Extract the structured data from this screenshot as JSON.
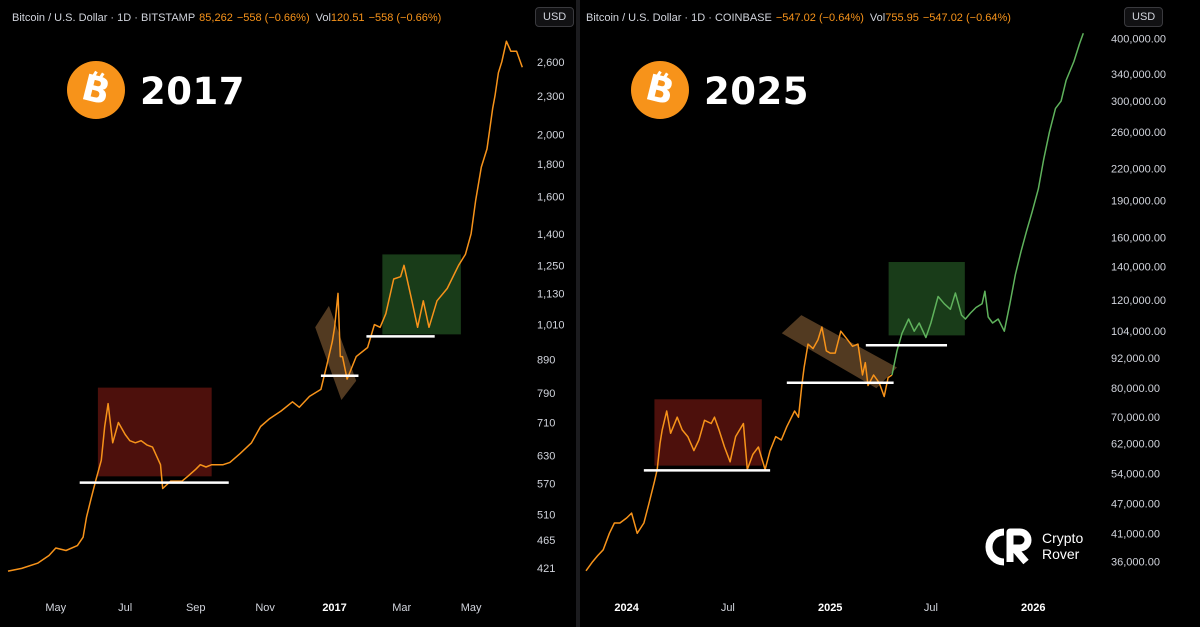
{
  "chart_data": [
    {
      "type": "line",
      "header": {
        "symbol": "Bitcoin / U.S. Dollar · 1D · BITSTAMP",
        "price": "85,262",
        "change": "−558 (−0.66%)",
        "vol_label": "Vol",
        "vol_value": "120.51",
        "vol_change": "−558 (−0.66%)"
      },
      "currency": "USD",
      "year_label": "2017",
      "scale": "log",
      "ylim": [
        400,
        3000
      ],
      "y_ticks": [
        "2,600",
        "2,300",
        "2,000",
        "1,800",
        "1,600",
        "1,400",
        "1,250",
        "1,130",
        "1,010",
        "890",
        "790",
        "710",
        "630",
        "570",
        "510",
        "465",
        "421"
      ],
      "x_ticks": [
        "May",
        "Jul",
        "Sep",
        "Nov",
        "2017",
        "Mar",
        "May"
      ],
      "x_ticks_bold": [
        false,
        false,
        false,
        false,
        true,
        false,
        false
      ],
      "x_dates": [
        "2016-05-01",
        "2016-07-01",
        "2016-09-01",
        "2016-11-01",
        "2017-01-01",
        "2017-03-01",
        "2017-05-01"
      ],
      "xlim": [
        "2016-03-20",
        "2017-06-20"
      ],
      "series": [
        {
          "color": "#f7931a",
          "x": [
            "2016-03-20",
            "2016-04-01",
            "2016-04-15",
            "2016-04-25",
            "2016-05-01",
            "2016-05-10",
            "2016-05-20",
            "2016-05-25",
            "2016-05-28",
            "2016-06-01",
            "2016-06-05",
            "2016-06-10",
            "2016-06-13",
            "2016-06-16",
            "2016-06-20",
            "2016-06-25",
            "2016-07-01",
            "2016-07-05",
            "2016-07-10",
            "2016-07-15",
            "2016-07-20",
            "2016-07-25",
            "2016-08-01",
            "2016-08-03",
            "2016-08-10",
            "2016-08-15",
            "2016-08-20",
            "2016-08-25",
            "2016-09-01",
            "2016-09-05",
            "2016-09-10",
            "2016-09-15",
            "2016-09-20",
            "2016-09-25",
            "2016-10-01",
            "2016-10-10",
            "2016-10-20",
            "2016-10-28",
            "2016-11-05",
            "2016-11-15",
            "2016-11-25",
            "2016-12-01",
            "2016-12-10",
            "2016-12-20",
            "2016-12-25",
            "2016-12-30",
            "2017-01-01",
            "2017-01-04",
            "2017-01-06",
            "2017-01-08",
            "2017-01-12",
            "2017-01-20",
            "2017-01-30",
            "2017-02-05",
            "2017-02-10",
            "2017-02-15",
            "2017-02-22",
            "2017-02-28",
            "2017-03-03",
            "2017-03-10",
            "2017-03-15",
            "2017-03-20",
            "2017-03-25",
            "2017-04-01",
            "2017-04-10",
            "2017-04-20",
            "2017-04-26",
            "2017-05-01",
            "2017-05-05",
            "2017-05-10",
            "2017-05-15",
            "2017-05-20",
            "2017-05-22",
            "2017-05-25",
            "2017-05-28",
            "2017-06-01",
            "2017-06-05",
            "2017-06-10",
            "2017-06-15"
          ],
          "values": [
            416,
            420,
            428,
            440,
            452,
            448,
            456,
            470,
            505,
            540,
            575,
            620,
            700,
            760,
            660,
            710,
            680,
            665,
            660,
            665,
            655,
            650,
            610,
            560,
            575,
            575,
            575,
            585,
            600,
            610,
            605,
            610,
            610,
            610,
            615,
            635,
            660,
            700,
            720,
            740,
            765,
            750,
            780,
            800,
            870,
            950,
            1000,
            1130,
            900,
            900,
            830,
            900,
            930,
            1010,
            1000,
            1050,
            1190,
            1200,
            1250,
            1100,
            1000,
            1100,
            1000,
            1100,
            1150,
            1250,
            1300,
            1400,
            1580,
            1780,
            1900,
            2200,
            2300,
            2500,
            2600,
            2800,
            2700,
            2700,
            2550
          ]
        }
      ],
      "boxes": [
        {
          "kind": "red",
          "x0": "2016-06-07",
          "x1": "2016-09-15",
          "y0": 585,
          "y1": 805
        },
        {
          "kind": "green",
          "x0": "2017-02-12",
          "x1": "2017-04-22",
          "y0": 975,
          "y1": 1300
        },
        {
          "kind": "tan",
          "corners": [
            [
              "2016-12-15",
              1000
            ],
            [
              "2016-12-27",
              1080
            ],
            [
              "2017-01-20",
              825
            ],
            [
              "2017-01-07",
              770
            ]
          ]
        }
      ],
      "support_lines": [
        {
          "x0": "2016-05-22",
          "x1": "2016-09-30",
          "y": 572
        },
        {
          "x0": "2016-12-20",
          "x1": "2017-01-22",
          "y": 840
        },
        {
          "x0": "2017-01-29",
          "x1": "2017-03-30",
          "y": 968
        }
      ]
    },
    {
      "type": "line",
      "header": {
        "symbol": "Bitcoin / U.S. Dollar · 1D · COINBASE",
        "price": "",
        "change": "−547.02 (−0.64%)",
        "vol_label": "Vol",
        "vol_value": "755.95",
        "vol_change": "−547.02 (−0.64%)"
      },
      "currency": "USD",
      "year_label": "2025",
      "scale": "log",
      "ylim": [
        34000,
        420000
      ],
      "y_ticks": [
        "400,000.00",
        "340,000.00",
        "300,000.00",
        "260,000.00",
        "220,000.00",
        "190,000.00",
        "160,000.00",
        "140,000.00",
        "120,000.00",
        "104,000.00",
        "92,000.00",
        "80,000.00",
        "70,000.00",
        "62,000.00",
        "54,000.00",
        "47,000.00",
        "41,000.00",
        "36,000.00"
      ],
      "x_ticks": [
        "2024",
        "Jul",
        "2025",
        "Jul",
        "2026"
      ],
      "x_ticks_bold": [
        true,
        false,
        true,
        false,
        true
      ],
      "x_dates": [
        "2024-01-01",
        "2024-07-01",
        "2025-01-01",
        "2025-07-01",
        "2026-01-01"
      ],
      "xlim": [
        "2023-10-20",
        "2026-05-01"
      ],
      "series": [
        {
          "color": "#f7931a",
          "x": [
            "2023-10-20",
            "2023-11-01",
            "2023-11-10",
            "2023-11-20",
            "2023-12-01",
            "2023-12-10",
            "2023-12-20",
            "2024-01-01",
            "2024-01-10",
            "2024-01-20",
            "2024-02-01",
            "2024-02-10",
            "2024-02-20",
            "2024-02-25",
            "2024-03-01",
            "2024-03-05",
            "2024-03-13",
            "2024-03-20",
            "2024-04-01",
            "2024-04-10",
            "2024-04-20",
            "2024-05-01",
            "2024-05-10",
            "2024-05-20",
            "2024-06-01",
            "2024-06-07",
            "2024-06-15",
            "2024-06-25",
            "2024-07-05",
            "2024-07-15",
            "2024-07-29",
            "2024-08-05",
            "2024-08-15",
            "2024-08-25",
            "2024-09-06",
            "2024-09-15",
            "2024-09-25",
            "2024-10-05",
            "2024-10-15",
            "2024-10-29",
            "2024-11-05",
            "2024-11-11",
            "2024-11-15",
            "2024-11-22",
            "2024-12-01",
            "2024-12-10",
            "2024-12-17",
            "2024-12-25",
            "2025-01-01",
            "2025-01-10",
            "2025-01-20",
            "2025-02-01",
            "2025-02-10",
            "2025-02-20",
            "2025-02-28",
            "2025-03-05",
            "2025-03-10",
            "2025-03-20",
            "2025-03-30",
            "2025-04-08",
            "2025-04-15",
            "2025-04-22"
          ],
          "values": [
            34500,
            36000,
            37000,
            38000,
            41000,
            43000,
            43000,
            44000,
            45000,
            41000,
            43000,
            47000,
            52000,
            55000,
            62000,
            66000,
            72000,
            65000,
            70000,
            66000,
            64000,
            60000,
            63000,
            69000,
            68000,
            70000,
            66000,
            61000,
            57000,
            64000,
            68000,
            55000,
            59000,
            61000,
            55000,
            60000,
            64000,
            63000,
            67000,
            72000,
            70000,
            81000,
            88000,
            98000,
            96000,
            100000,
            106000,
            95000,
            94000,
            94000,
            104000,
            100000,
            97000,
            98000,
            85000,
            90000,
            81000,
            85000,
            82000,
            77000,
            84000,
            85000
          ]
        },
        {
          "color": "#5fb25c",
          "x": [
            "2025-04-22",
            "2025-05-01",
            "2025-05-10",
            "2025-05-22",
            "2025-06-01",
            "2025-06-10",
            "2025-06-22",
            "2025-07-01",
            "2025-07-14",
            "2025-07-25",
            "2025-08-05",
            "2025-08-14",
            "2025-08-25",
            "2025-09-01",
            "2025-09-10",
            "2025-09-20",
            "2025-10-01",
            "2025-10-06",
            "2025-10-12",
            "2025-10-20",
            "2025-10-30",
            "2025-11-10",
            "2025-11-20",
            "2025-11-30",
            "2025-12-10",
            "2025-12-20",
            "2025-12-30",
            "2026-01-10",
            "2026-01-20",
            "2026-01-30",
            "2026-02-10",
            "2026-02-20",
            "2026-03-01",
            "2026-03-15",
            "2026-03-25",
            "2026-04-01"
          ],
          "values": [
            85000,
            95000,
            103000,
            110000,
            104000,
            108000,
            101000,
            108000,
            122000,
            118000,
            115000,
            124000,
            112000,
            110000,
            113000,
            116000,
            118000,
            125000,
            111000,
            108000,
            110000,
            104000,
            118000,
            135000,
            150000,
            165000,
            180000,
            200000,
            230000,
            260000,
            290000,
            300000,
            330000,
            360000,
            390000,
            410000
          ]
        }
      ],
      "boxes": [
        {
          "kind": "red",
          "x0": "2024-02-20",
          "x1": "2024-08-31",
          "y0": 56000,
          "y1": 76000
        },
        {
          "kind": "green",
          "x0": "2025-04-16",
          "x1": "2025-08-31",
          "y0": 102000,
          "y1": 143000
        },
        {
          "kind": "tan",
          "corners": [
            [
              "2024-10-06",
              103000
            ],
            [
              "2024-11-10",
              112000
            ],
            [
              "2025-05-01",
              88000
            ],
            [
              "2025-03-25",
              80000
            ]
          ]
        }
      ],
      "support_lines": [
        {
          "x0": "2024-02-01",
          "x1": "2024-09-15",
          "y": 54800
        },
        {
          "x0": "2024-10-15",
          "x1": "2025-04-25",
          "y": 82000
        },
        {
          "x0": "2025-03-06",
          "x1": "2025-07-30",
          "y": 97500
        }
      ]
    }
  ],
  "brand": {
    "line1": "Crypto",
    "line2": "Rover",
    "icon": "crypto-rover-logo-icon"
  },
  "icons": {
    "bitcoin": "bitcoin-logo-icon"
  },
  "colors": {
    "btc_orange": "#f7931a",
    "green_line": "#5fb25c",
    "red_box": "rgba(140,30,22,0.55)",
    "green_box": "rgba(45,110,45,0.55)",
    "tan_box": "rgba(150,105,60,0.55)"
  }
}
